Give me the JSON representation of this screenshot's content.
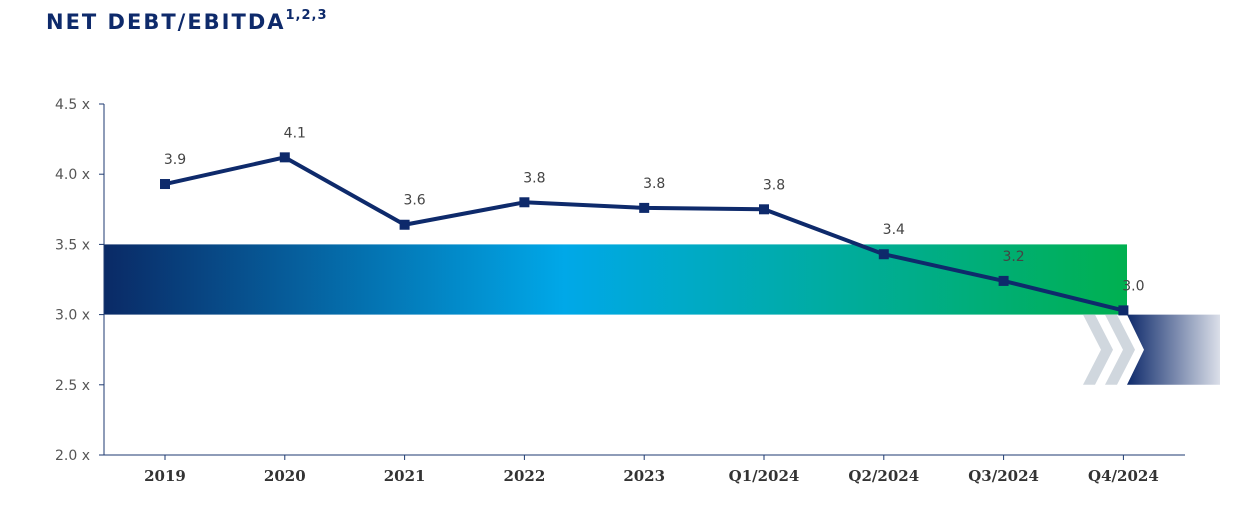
{
  "title": "NET DEBT/EBITDA",
  "title_superscript": "1,2,3",
  "chart_data": {
    "type": "line",
    "title": "NET DEBT/EBITDA",
    "categories": [
      "2019",
      "2020",
      "2021",
      "2022",
      "2023",
      "Q1/2024",
      "Q2/2024",
      "Q3/2024",
      "Q4/2024"
    ],
    "values": [
      3.93,
      4.12,
      3.64,
      3.8,
      3.76,
      3.75,
      3.43,
      3.24,
      3.03
    ],
    "data_labels": [
      "3.9",
      "4.1",
      "3.6",
      "3.8",
      "3.8",
      "3.8",
      "3.4",
      "3.2",
      "3.0"
    ],
    "y_ticks": [
      2.0,
      2.5,
      3.0,
      3.5,
      4.0,
      4.5
    ],
    "y_tick_labels": [
      "2.0 x",
      "2.5 x",
      "3.0 x",
      "3.5 x",
      "4.0 x",
      "4.5 x"
    ],
    "ylim": [
      2.0,
      4.5
    ],
    "target_band": [
      3.0,
      3.5
    ],
    "grid": false,
    "colors": {
      "line": "#0e2a6b",
      "band_start": "#0a2a66",
      "band_mid": "#00a8e8",
      "band_end": "#00b050",
      "arrow": "#0e2a6b",
      "chevron": "#d0d7de"
    }
  }
}
